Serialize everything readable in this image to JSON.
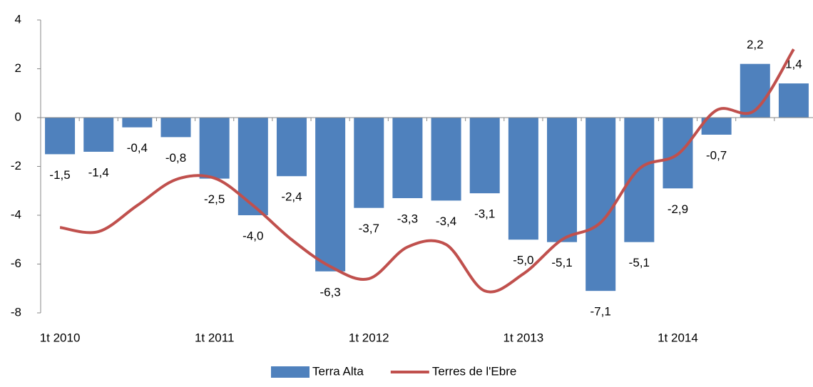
{
  "chart_data": {
    "type": "bar",
    "categories": [
      "1t 2010",
      null,
      null,
      null,
      "1t 2011",
      null,
      null,
      null,
      "1t 2012",
      null,
      null,
      null,
      "1t 2013",
      null,
      null,
      null,
      "1t 2014",
      null,
      null,
      null
    ],
    "series": [
      {
        "name": "Terra Alta",
        "type": "bar",
        "color": "#4f81bd",
        "values": [
          -1.5,
          -1.4,
          -0.4,
          -0.8,
          -2.5,
          -4.0,
          -2.4,
          -6.3,
          -3.7,
          -3.3,
          -3.4,
          -3.1,
          -5.0,
          -5.1,
          -7.1,
          -5.1,
          -2.9,
          -0.7,
          2.2,
          1.4
        ],
        "value_labels": [
          "-1,5",
          "-1,4",
          "-0,4",
          "-0,8",
          "-2,5",
          "-4,0",
          "-2,4",
          "-6,3",
          "-3,7",
          "-3,3",
          "-3,4",
          "-3,1",
          "-5,0",
          "-5,1",
          "-7,1",
          "-5,1",
          "-2,9",
          "-0,7",
          "2,2",
          "1,4"
        ]
      },
      {
        "name": "Terres de l'Ebre",
        "type": "line",
        "color": "#c0504d",
        "values": [
          -4.5,
          -4.67,
          -3.6,
          -2.54,
          -2.48,
          -3.6,
          -5.0,
          -6.1,
          -6.6,
          -5.3,
          -5.2,
          -7.1,
          -6.4,
          -5.0,
          -4.3,
          -2.1,
          -1.5,
          0.3,
          0.3,
          2.8
        ]
      }
    ],
    "ylim": [
      -8,
      4
    ],
    "yticks": [
      -8,
      -6,
      -4,
      -2,
      0,
      2,
      4
    ],
    "grid": false,
    "legend": "bottom"
  }
}
